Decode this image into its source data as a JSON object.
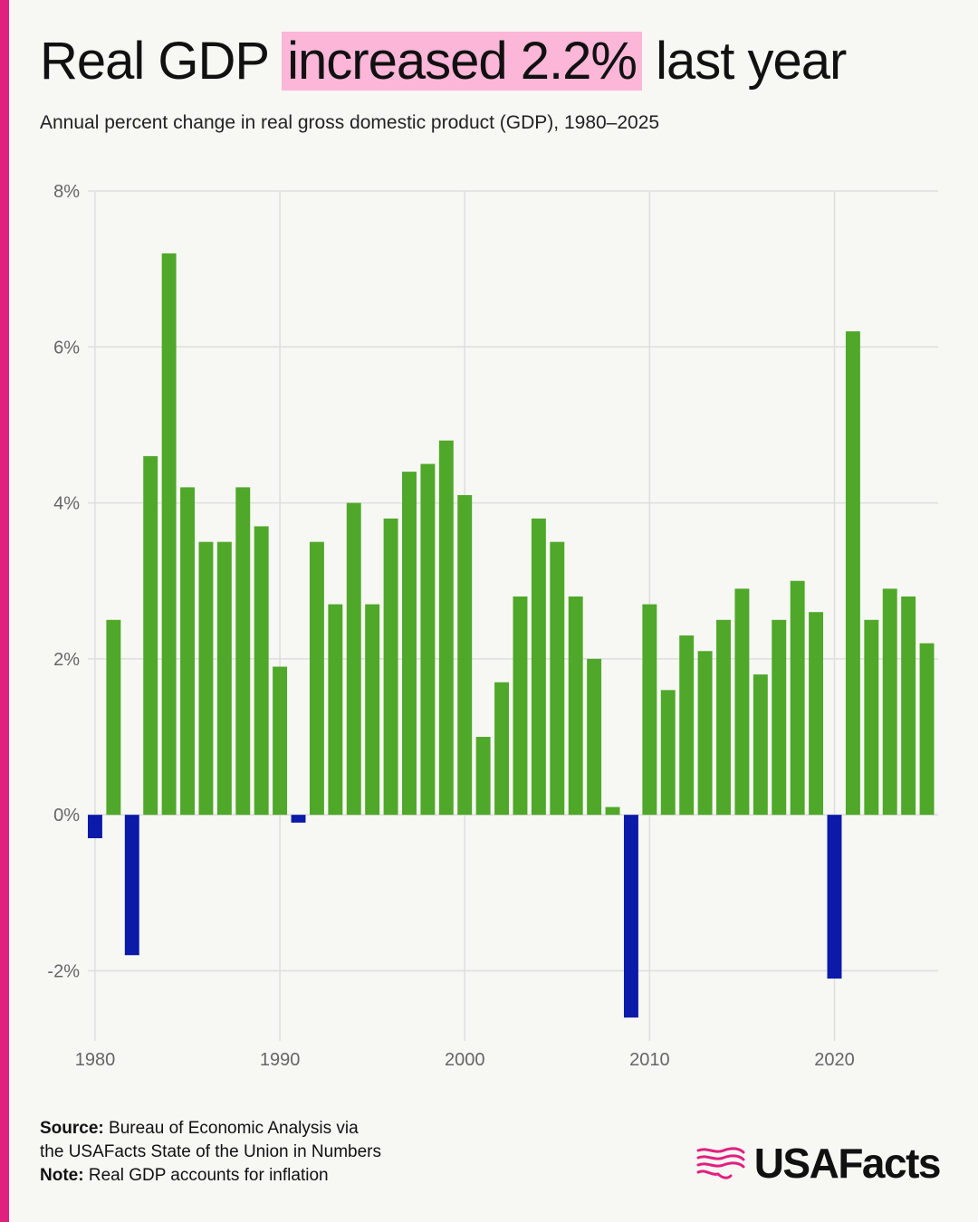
{
  "header": {
    "title_pre": "Real GDP ",
    "title_highlight": "increased 2.2%",
    "title_post": " last year",
    "subtitle": "Annual percent change in real gross domestic product (GDP), 1980–2025"
  },
  "colors": {
    "positive": "#4fa829",
    "negative": "#0b1aa8",
    "highlight": "#fbb6d8",
    "accent": "#e0207f"
  },
  "chart_data": {
    "type": "bar",
    "title": "",
    "xlabel": "",
    "ylabel": "",
    "categories": [
      1980,
      1981,
      1982,
      1983,
      1984,
      1985,
      1986,
      1987,
      1988,
      1989,
      1990,
      1991,
      1992,
      1993,
      1994,
      1995,
      1996,
      1997,
      1998,
      1999,
      2000,
      2001,
      2002,
      2003,
      2004,
      2005,
      2006,
      2007,
      2008,
      2009,
      2010,
      2011,
      2012,
      2013,
      2014,
      2015,
      2016,
      2017,
      2018,
      2019,
      2020,
      2021,
      2022,
      2023,
      2024,
      2025
    ],
    "values": [
      -0.3,
      2.5,
      -1.8,
      4.6,
      7.2,
      4.2,
      3.5,
      3.5,
      4.2,
      3.7,
      1.9,
      -0.1,
      3.5,
      2.7,
      4.0,
      2.7,
      3.8,
      4.4,
      4.5,
      4.8,
      4.1,
      1.0,
      1.7,
      2.8,
      3.8,
      3.5,
      2.8,
      2.0,
      0.1,
      -2.6,
      2.7,
      1.6,
      2.3,
      2.1,
      2.5,
      2.9,
      1.8,
      2.5,
      3.0,
      2.6,
      -2.1,
      6.2,
      2.5,
      2.9,
      2.8,
      2.2
    ],
    "ylim": [
      -2.9,
      8
    ],
    "yticks": [
      8,
      6,
      4,
      2,
      0,
      -2
    ],
    "ytick_labels": [
      "8%",
      "6%",
      "4%",
      "2%",
      "0%",
      "-2%"
    ],
    "xticks": [
      1980,
      1990,
      2000,
      2010,
      2020
    ],
    "xtick_labels": [
      "1980",
      "1990",
      "2000",
      "2010",
      "2020"
    ],
    "grid": true,
    "legend": "none"
  },
  "footer": {
    "source_label": "Source:",
    "source_line1": "Bureau of Economic Analysis via",
    "source_line2": "the USAFacts State of the Union in Numbers",
    "note_label": "Note:",
    "note_text": "Real GDP accounts for inflation"
  },
  "logo": {
    "text": "USAFacts",
    "icon": "usafacts-flag-map-icon"
  }
}
